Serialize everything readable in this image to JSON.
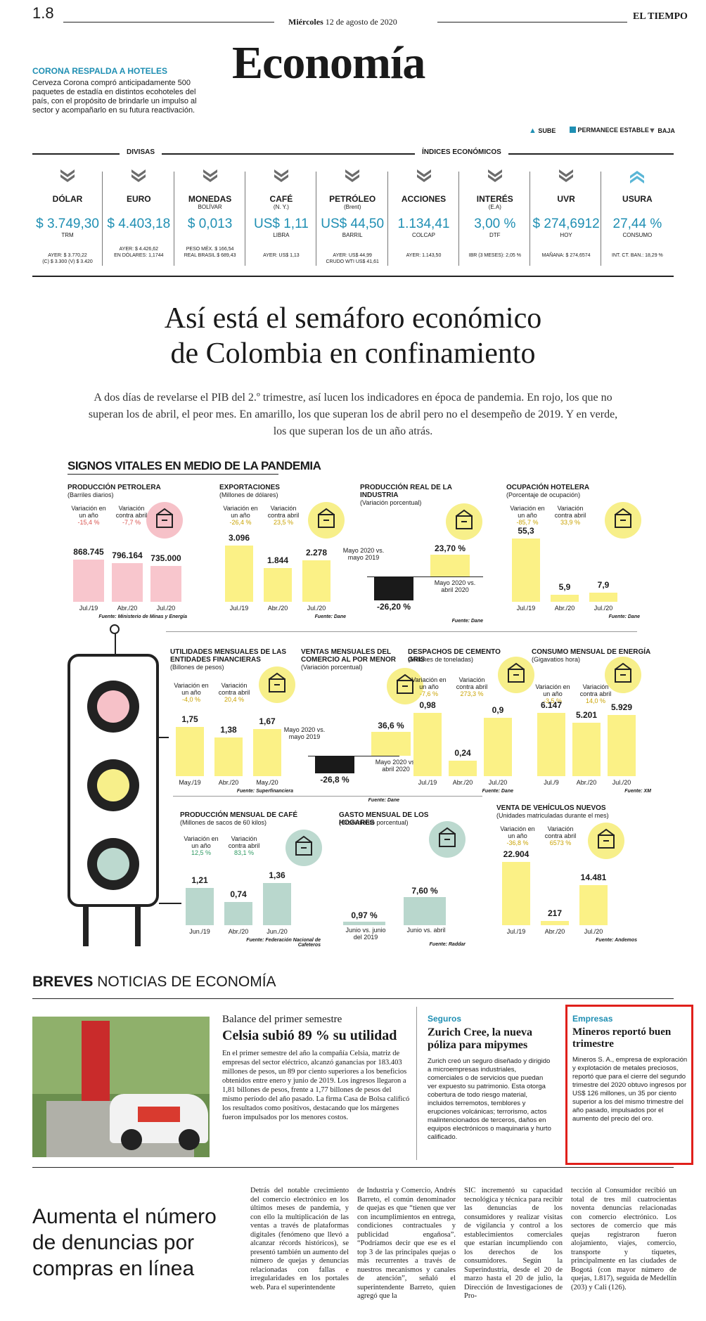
{
  "header": {
    "page": "1.8",
    "day": "Miércoles",
    "date": "12 de agosto de 2020",
    "brand": "EL TIEMPO",
    "section": "Economía"
  },
  "promo": {
    "title": "CORONA RESPALDA A HOTELES",
    "text": "Cerveza Corona compró anticipadamente 500 paquetes de estadía en distintos ecohoteles del país, con el propósito de brindarle un impulso al sector y acompañarlo en su futura reactivación."
  },
  "legend": {
    "up": "SUBE",
    "stable": "PERMANECE ESTABLE",
    "down": "BAJA"
  },
  "indicators": {
    "divisas_label": "DIVISAS",
    "indices_label": "ÍNDICES ECONÓMICOS",
    "items": [
      {
        "name": "DÓLAR",
        "sub": "",
        "value": "$ 3.749,30",
        "unit": "TRM",
        "foot1": "AYER: $ 3.770,22",
        "foot2": "(C) $ 3.300 (V) $ 3.420",
        "trend": "down"
      },
      {
        "name": "EURO",
        "sub": "",
        "value": "$ 4.403,18",
        "unit": "",
        "foot1": "AYER: $ 4.426,62",
        "foot2": "EN DÓLARES: 1,1744",
        "trend": "down"
      },
      {
        "name": "MONEDAS",
        "sub": "BOLÍVAR",
        "value": "$ 0,013",
        "unit": "",
        "foot1": "PESO MÉX. $ 166,54",
        "foot2": "REAL BRASIL $ 689,43",
        "trend": "down"
      },
      {
        "name": "CAFÉ",
        "sub": "(N. Y.)",
        "value": "US$ 1,11",
        "unit": "LIBRA",
        "foot1": "AYER: US$ 1,13",
        "foot2": "",
        "trend": "down"
      },
      {
        "name": "PETRÓLEO",
        "sub": "(Brent)",
        "value": "US$ 44,50",
        "unit": "BARRIL",
        "foot1": "AYER: US$ 44,99",
        "foot2": "CRUDO WTI US$ 41,61",
        "trend": "down"
      },
      {
        "name": "ACCIONES",
        "sub": "",
        "value": "1.134,41",
        "unit": "COLCAP",
        "foot1": "AYER: 1.143,50",
        "foot2": "",
        "trend": "down"
      },
      {
        "name": "INTERÉS",
        "sub": "(E.A)",
        "value": "3,00 %",
        "unit": "DTF",
        "foot1": "IBR (3 MESES): 2,05 %",
        "foot2": "",
        "trend": "down"
      },
      {
        "name": "UVR",
        "sub": "",
        "value": "$ 274,6912",
        "unit": "HOY",
        "foot1": "MAÑANA: $ 274,6574",
        "foot2": "",
        "trend": "down"
      },
      {
        "name": "USURA",
        "sub": "",
        "value": "27,44 %",
        "unit": "CONSUMO",
        "foot1": "INT. CT. BAN.: 18,29 %",
        "foot2": "",
        "trend": "up"
      }
    ]
  },
  "article": {
    "headline_1": "Así está el semáforo económico",
    "headline_2": "de Colombia en confinamiento",
    "lead": "A dos días de revelarse el PIB del 2.º trimestre, así lucen los indicadores en época de pandemia. En rojo, los que no superan los de abril, el peor mes. En amarillo, los que superan los de abril pero no el desempeño de 2019. Y en verde, los que superan los de un año atrás."
  },
  "signos_title": "SIGNOS VITALES EN MEDIO DE LA PANDEMIA",
  "var_labels": {
    "year": "Variación en un año",
    "april": "Variación contra abril"
  },
  "chart_data": [
    {
      "type": "bar",
      "title": "PRODUCCIÓN PETROLERA",
      "subtitle": "(Barriles diarios)",
      "categories": [
        "Jul./19",
        "Abr./20",
        "Jul./20"
      ],
      "values": [
        868745,
        796164,
        735000
      ],
      "labels": [
        "868.745",
        "796.164",
        "735.000"
      ],
      "var_year": "-15,4 %",
      "var_april": "-7,7 %",
      "color": "#f8c6cd",
      "source": "Fuente: Ministerio de Minas y Energía"
    },
    {
      "type": "bar",
      "title": "EXPORTACIONES",
      "subtitle": "(Millones de dólares)",
      "categories": [
        "Jul./19",
        "Abr./20",
        "Jul./20"
      ],
      "values": [
        3096,
        1844,
        2278
      ],
      "labels": [
        "3.096",
        "1.844",
        "2.278"
      ],
      "var_year": "-26,4 %",
      "var_april": "23,5 %",
      "color": "#fbf186",
      "source": "Fuente: Dane"
    },
    {
      "type": "bar",
      "title": "PRODUCCIÓN REAL DE LA INDUSTRIA",
      "subtitle": "(Variación porcentual)",
      "categories": [
        "Mayo 2020 vs. mayo 2019",
        "Mayo 2020 vs. abril 2020"
      ],
      "values": [
        -26.2,
        23.7
      ],
      "labels": [
        "-26,20 %",
        "23,70 %"
      ],
      "color": "#fbf186",
      "source": "Fuente: Dane"
    },
    {
      "type": "bar",
      "title": "OCUPACIÓN HOTELERA",
      "subtitle": "(Porcentaje de ocupación)",
      "categories": [
        "Jul./19",
        "Abr./20",
        "Jul./20"
      ],
      "values": [
        55.3,
        5.9,
        7.9
      ],
      "labels": [
        "55,3",
        "5,9",
        "7,9"
      ],
      "var_year": "-85,7 %",
      "var_april": "33,9 %",
      "color": "#fbf186",
      "source": "Fuente: Dane"
    },
    {
      "type": "bar",
      "title": "UTILIDADES MENSUALES DE LAS ENTIDADES FINANCIERAS",
      "subtitle": "(Billones de pesos)",
      "categories": [
        "May./19",
        "Abr./20",
        "May./20"
      ],
      "values": [
        1.75,
        1.38,
        1.67
      ],
      "labels": [
        "1,75",
        "1,38",
        "1,67"
      ],
      "var_year": "-4,0 %",
      "var_april": "20,4 %",
      "color": "#fbf186",
      "source": "Fuente: Superfinanciera"
    },
    {
      "type": "bar",
      "title": "VENTAS MENSUALES DEL COMERCIO AL POR MENOR",
      "subtitle": "(Variación porcentual)",
      "categories": [
        "Mayo 2020 vs. mayo 2019",
        "Mayo 2020 vs. abril 2020"
      ],
      "values": [
        -26.8,
        36.6
      ],
      "labels": [
        "-26,8 %",
        "36,6 %"
      ],
      "color": "#fbf186",
      "source": "Fuente: Dane"
    },
    {
      "type": "bar",
      "title": "DESPACHOS DE CEMENTO GRIS",
      "subtitle": "(Millones de toneladas)",
      "categories": [
        "Jul./19",
        "Abr./20",
        "Jul./20"
      ],
      "values": [
        0.98,
        0.24,
        0.9
      ],
      "labels": [
        "0,98",
        "0,24",
        "0,9"
      ],
      "var_year": "-7,6 %",
      "var_april": "273,3 %",
      "color": "#fbf186",
      "source": "Fuente: Dane"
    },
    {
      "type": "bar",
      "title": "CONSUMO MENSUAL DE ENERGÍA",
      "subtitle": "(Gigavatios hora)",
      "categories": [
        "Jul./9",
        "Abr./20",
        "Jul./20"
      ],
      "values": [
        6147,
        5201,
        5929
      ],
      "labels": [
        "6.147",
        "5.201",
        "5.929"
      ],
      "var_year": "-3,5 %",
      "var_april": "14,0 %",
      "color": "#fbf186",
      "source": "Fuente: XM"
    },
    {
      "type": "bar",
      "title": "PRODUCCIÓN MENSUAL DE CAFÉ",
      "subtitle": "(Millones de sacos de 60 kilos)",
      "categories": [
        "Jun./19",
        "Abr./20",
        "Jun./20"
      ],
      "values": [
        1.21,
        0.74,
        1.36
      ],
      "labels": [
        "1,21",
        "0,74",
        "1,36"
      ],
      "var_year": "12,5 %",
      "var_april": "83,1 %",
      "color": "#b9d7cd",
      "source": "Fuente: Federación Nacional de Cafeteros"
    },
    {
      "type": "bar",
      "title": "GASTO MENSUAL DE LOS HOGARES",
      "subtitle": "(Crecimiento porcentual)",
      "categories": [
        "Junio vs. junio del 2019",
        "Junio vs. abril"
      ],
      "values": [
        0.97,
        7.6
      ],
      "labels": [
        "0,97 %",
        "7,60 %"
      ],
      "color": "#b9d7cd",
      "source": "Fuente: Raddar"
    },
    {
      "type": "bar",
      "title": "VENTA DE VEHÍCULOS NUEVOS",
      "subtitle": "(Unidades matriculadas durante el mes)",
      "categories": [
        "Jul./19",
        "Abr./20",
        "Jul./20"
      ],
      "values": [
        22904,
        217,
        14481
      ],
      "labels": [
        "22.904",
        "217",
        "14.481"
      ],
      "var_year": "-36,8 %",
      "var_april": "6573 %",
      "color": "#fbf186",
      "source": "Fuente: Andemos"
    }
  ],
  "breves": {
    "title_bold": "BREVES",
    "title_rest": " NOTICIAS DE ECONOMÍA",
    "celsia_kicker": "Balance del primer semestre",
    "celsia_head": "Celsia subió 89 % su utilidad",
    "celsia_text": "En el primer semestre del año la compañía Celsia, matriz de empresas del sector eléctrico, alcanzó ganancias por 183.403 millones de pesos, un 89 por ciento superiores a los beneficios obtenidos entre enero y junio de 2019. Los ingresos llegaron a 1,81 billones de pesos, frente a 1,77 billones de pesos del mismo período del año pasado. La firma Casa de Bolsa calificó los resultados como positivos, destacando que los márgenes fueron impulsados por los menores costos.",
    "zurich_kicker": "Seguros",
    "zurich_head": "Zurich Cree, la nueva póliza para mipymes",
    "zurich_text": "Zurich creó un seguro diseñado y dirigido a microempresas industriales, comerciales o de servicios que puedan ver expuesto su patrimonio. Esta otorga cobertura de todo riesgo material, incluidos terremotos, temblores y erupciones volcánicas; terrorismo, actos malintencionados de terceros, daños en equipos electrónicos o maquinaria y hurto calificado.",
    "mineros_kicker": "Empresas",
    "mineros_head": "Mineros reportó buen trimestre",
    "mineros_text": "Mineros S. A., empresa de exploración y explotación de metales preciosos, reportó que para el cierre del segundo trimestre del 2020 obtuvo ingresos por US$ 126 millones, un 35 por ciento superior a los del mismo trimestre del año pasado, impulsados por el aumento del precio del oro."
  },
  "story2": {
    "headline": "Aumenta el número de denuncias por compras en línea",
    "col1": "Detrás del notable crecimiento del comercio electrónico en los últimos meses de pandemia, y con ello la multiplicación de las ventas a través de plataformas digitales (fenómeno que llevó a alcanzar récords históricos), se presentó también un aumento del número de quejas y denuncias relacionadas con fallas e irregularidades en los portales web. Para el superintendente",
    "col2": "de Industria y Comercio, Andrés Barreto, el común denominador de quejas es que “tienen que ver con incumplimientos en entrega, condiciones contractuales y publicidad engañosa”. “Podríamos decir que ese es el top 3 de las principales quejas o más recurrentes a través de nuestros mecanismos y canales de atención”, señaló el superintendente Barreto, quien agregó que la",
    "col3": "SIC incrementó su capacidad tecnológica y técnica para recibir las denuncias de los consumidores y realizar visitas de vigilancia y control a los establecimientos comerciales que estarían incumpliendo con los derechos de los consumidores. Según la Superindustria, desde el 20 de marzo hasta el 20 de julio, la Dirección de Investigaciones de Pro-",
    "col4": "tección al Consumidor recibió un total de tres mil cuatrocientas noventa denuncias relacionadas con comercio electrónico. Los sectores de comercio que más quejas registraron fueron alojamiento, viajes, comercio, transporte y tiquetes, principalmente en las ciudades de Bogotá (con mayor número de quejas, 1.817), seguida de Medellín (203) y Cali (126)."
  }
}
